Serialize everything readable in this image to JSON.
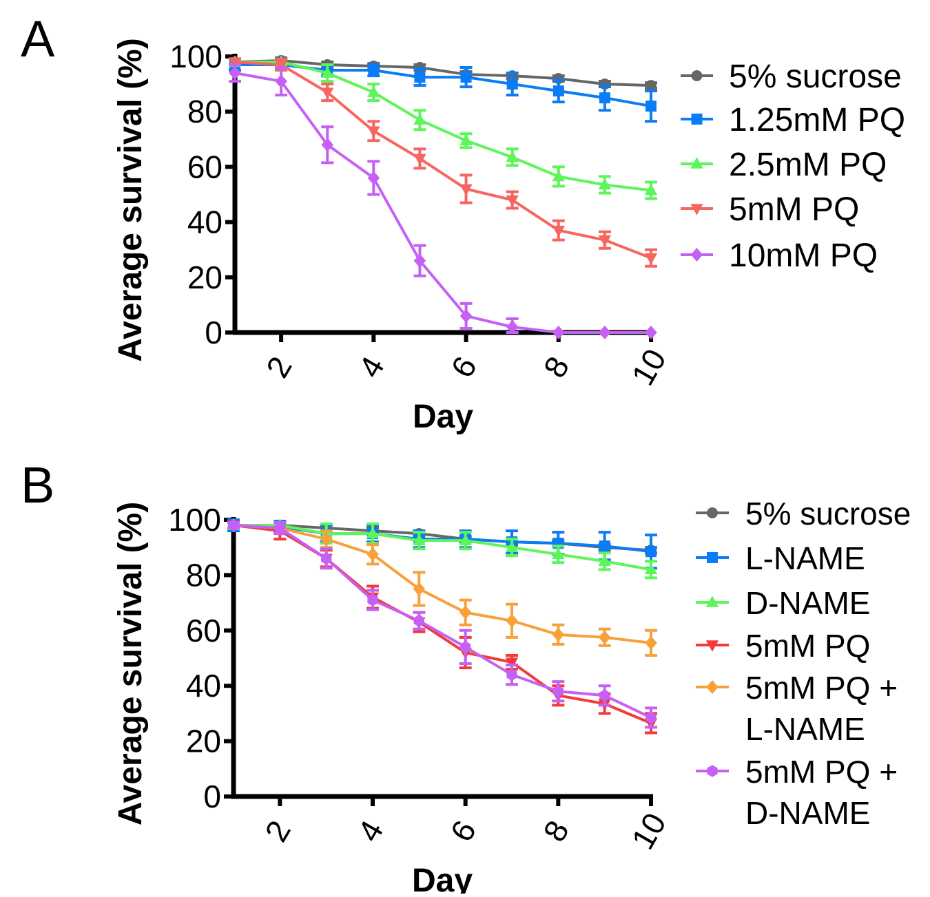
{
  "chart_data": [
    {
      "panel_label": "A",
      "type": "line",
      "xlabel": "Day",
      "ylabel": "Average survival (%)",
      "xlim": [
        1,
        10
      ],
      "ylim": [
        0,
        100
      ],
      "xticks": [
        2,
        4,
        6,
        8,
        10
      ],
      "yticks": [
        0,
        20,
        40,
        60,
        80,
        100
      ],
      "grid": false,
      "legend_position": "right",
      "x": [
        1,
        2,
        3,
        4,
        5,
        6,
        7,
        8,
        9,
        10
      ],
      "series": [
        {
          "name": "5% sucrose",
          "color": "#666666",
          "marker": "circle",
          "values": [
            98,
            98.5,
            97,
            96.5,
            96,
            93.5,
            93,
            92,
            90,
            89.5
          ],
          "error": [
            1,
            1,
            1,
            1,
            1,
            1,
            1,
            1,
            1,
            1
          ]
        },
        {
          "name": "1.25mM PQ",
          "color": "#0a7cf6",
          "marker": "square",
          "values": [
            97,
            97,
            95,
            95,
            92.5,
            92.5,
            90,
            87.5,
            85,
            82
          ],
          "error": [
            2,
            2,
            2,
            2,
            3,
            3.5,
            4,
            4,
            4.5,
            5.5
          ]
        },
        {
          "name": "2.5mM PQ",
          "color": "#5ef55a",
          "marker": "triangle-up",
          "values": [
            98,
            98,
            94,
            87,
            77,
            69.5,
            63.5,
            56.5,
            53.5,
            51.5
          ],
          "error": [
            1,
            1,
            3,
            3,
            3.5,
            2.5,
            3,
            3.5,
            3,
            3
          ]
        },
        {
          "name": "5mM PQ",
          "color": "#f66660",
          "marker": "triangle-down",
          "values": [
            98,
            97,
            87,
            73,
            63,
            52,
            48,
            37,
            33.5,
            27
          ],
          "error": [
            1,
            2,
            3,
            3.5,
            3.5,
            5,
            3,
            3.5,
            3,
            3
          ]
        },
        {
          "name": "10mM PQ",
          "color": "#c660f5",
          "marker": "diamond",
          "values": [
            94,
            91,
            68,
            56,
            26,
            6,
            2,
            0,
            0,
            0
          ],
          "error": [
            3,
            5,
            6.5,
            6,
            5.5,
            4.5,
            3,
            0,
            0,
            0
          ]
        }
      ]
    },
    {
      "panel_label": "B",
      "type": "line",
      "xlabel": "Day",
      "ylabel": "Average survival (%)",
      "xlim": [
        1,
        10
      ],
      "ylim": [
        0,
        100
      ],
      "xticks": [
        2,
        4,
        6,
        8,
        10
      ],
      "yticks": [
        0,
        20,
        40,
        60,
        80,
        100
      ],
      "grid": false,
      "legend_position": "right",
      "x": [
        1,
        2,
        3,
        4,
        5,
        6,
        7,
        8,
        9,
        10
      ],
      "series": [
        {
          "name": "5% sucrose",
          "color": "#666666",
          "marker": "circle",
          "values": [
            98,
            98,
            97,
            96,
            95,
            93,
            92,
            91.5,
            90,
            89
          ],
          "error": [
            1,
            1,
            1,
            1,
            1,
            1,
            1,
            1,
            1,
            1
          ]
        },
        {
          "name": "L-NAME",
          "color": "#0a7cf6",
          "marker": "square",
          "values": [
            98,
            97.5,
            95,
            95,
            93,
            93,
            92,
            91.5,
            90.5,
            88.5
          ],
          "error": [
            2,
            2,
            3,
            3,
            3,
            3,
            4,
            4,
            5,
            6
          ]
        },
        {
          "name": "D-NAME",
          "color": "#5ef55a",
          "marker": "triangle-up",
          "values": [
            98,
            98,
            95,
            95,
            92.5,
            92.5,
            90,
            87.5,
            85,
            82
          ],
          "error": [
            1,
            1,
            3.5,
            3.5,
            3,
            3,
            3,
            3,
            3,
            3
          ]
        },
        {
          "name": "5mM PQ",
          "color": "#f23a3a",
          "marker": "triangle-down",
          "values": [
            98,
            96,
            86,
            72,
            63,
            52,
            48.5,
            36.5,
            33.5,
            26.5
          ],
          "error": [
            1,
            3,
            3,
            4,
            3.5,
            5.5,
            2.5,
            3.5,
            3.5,
            3.5
          ]
        },
        {
          "name": "5mM PQ + L-NAME",
          "legend_lines": [
            "5mM PQ +",
            "L-NAME"
          ],
          "color": "#f8a03a",
          "marker": "diamond",
          "values": [
            98,
            97,
            93,
            87.5,
            75,
            66.5,
            63.5,
            58.5,
            57.5,
            55.5
          ],
          "error": [
            1,
            2,
            3,
            3.5,
            6,
            4.5,
            6,
            3.5,
            3,
            4.5
          ]
        },
        {
          "name": "5mM PQ + D-NAME",
          "legend_lines": [
            "5mM PQ +",
            "D-NAME"
          ],
          "color": "#c660f5",
          "marker": "hexagon",
          "values": [
            98,
            97,
            86,
            71,
            63.5,
            54,
            44,
            38,
            36.5,
            28.5
          ],
          "error": [
            1,
            2,
            3.5,
            3.5,
            3,
            6,
            3.5,
            3.5,
            3.5,
            3.5
          ]
        }
      ]
    }
  ]
}
